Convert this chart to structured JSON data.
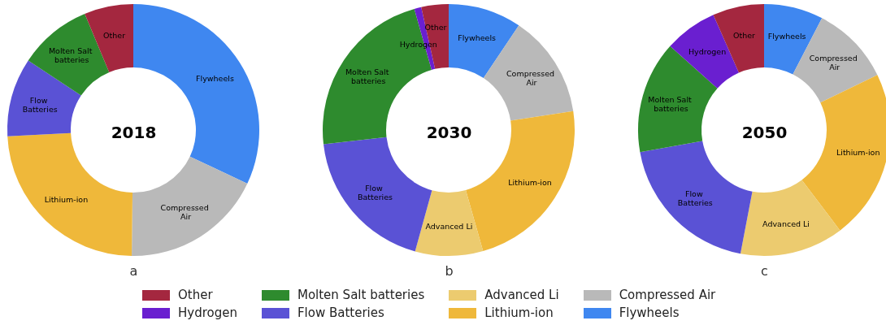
{
  "chart_data": [
    {
      "type": "donut",
      "title": "2018",
      "subtitle": "a",
      "categories": [
        "Flywheels",
        "Compressed Air",
        "Lithium-ion",
        "Flow Batteries",
        "Molten Salt batteries",
        "Other"
      ],
      "values": [
        32,
        18.2,
        24,
        10.1,
        9.4,
        6.3
      ],
      "colors": [
        "#3f87f0",
        "#b9b9b9",
        "#efb83a",
        "#5a52d5",
        "#2e8b2e",
        "#a4273f"
      ],
      "legend": "bottom"
    },
    {
      "type": "donut",
      "title": "2030",
      "subtitle": "b",
      "categories": [
        "Flywheels",
        "Compressed Air",
        "Lithium-ion",
        "Advanced Li",
        "Flow Batteries",
        "Molten Salt batteries",
        "Hydrogen",
        "Other"
      ],
      "values": [
        9.4,
        13.2,
        23,
        8.7,
        18.9,
        22.4,
        0.9,
        3.5
      ],
      "colors": [
        "#3f87f0",
        "#b9b9b9",
        "#efb83a",
        "#eccb6f",
        "#5a52d5",
        "#2e8b2e",
        "#6a1fd0",
        "#a4273f"
      ],
      "legend": "bottom"
    },
    {
      "type": "donut",
      "title": "2050",
      "subtitle": "c",
      "categories": [
        "Flywheels",
        "Compressed Air",
        "Lithium-ion",
        "Advanced Li",
        "Flow Batteries",
        "Molten Salt batteries",
        "Hydrogen",
        "Other"
      ],
      "values": [
        7.6,
        10.2,
        21.9,
        13.3,
        19.2,
        14.4,
        6.8,
        6.6
      ],
      "colors": [
        "#3f87f0",
        "#b9b9b9",
        "#efb83a",
        "#eccb6f",
        "#5a52d5",
        "#2e8b2e",
        "#6a1fd0",
        "#a4273f"
      ]
    }
  ]
}
